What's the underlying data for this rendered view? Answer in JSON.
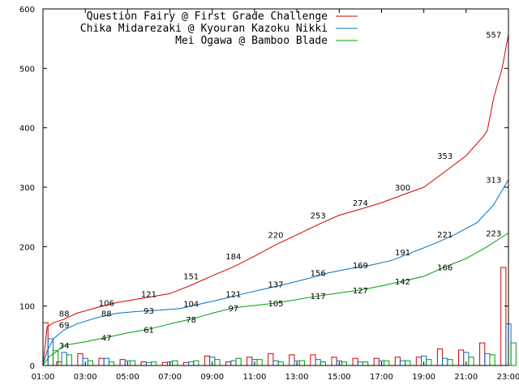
{
  "chart_data": {
    "type": "line",
    "xlim": [
      "01:00",
      "23:00"
    ],
    "ylim": [
      0,
      600
    ],
    "y_ticks": [
      "0",
      "100",
      "200",
      "300",
      "400",
      "500",
      "600"
    ],
    "x_ticks": [
      "01:00",
      "03:00",
      "05:00",
      "07:00",
      "09:00",
      "11:00",
      "13:00",
      "15:00",
      "17:00",
      "19:00",
      "21:00",
      "23:00"
    ],
    "grid": false,
    "legend_position": "top-right",
    "series": [
      {
        "name": "Question Fairy @ First Grade Challenge",
        "color": "#d40000",
        "cumulative": [
          {
            "x": 1.0,
            "y": 0
          },
          {
            "x": 1.2,
            "y": 65
          },
          {
            "x": 1.5,
            "y": 72
          },
          {
            "x": 2.0,
            "y": 78
          },
          {
            "x": 2.6,
            "y": 88
          },
          {
            "x": 3.5,
            "y": 97
          },
          {
            "x": 4.5,
            "y": 106
          },
          {
            "x": 5.5,
            "y": 112
          },
          {
            "x": 6.5,
            "y": 118
          },
          {
            "x": 7.0,
            "y": 121
          },
          {
            "x": 8.0,
            "y": 135
          },
          {
            "x": 9.0,
            "y": 151
          },
          {
            "x": 10.0,
            "y": 166
          },
          {
            "x": 11.0,
            "y": 184
          },
          {
            "x": 12.0,
            "y": 203
          },
          {
            "x": 13.0,
            "y": 220
          },
          {
            "x": 14.0,
            "y": 237
          },
          {
            "x": 15.0,
            "y": 253
          },
          {
            "x": 16.0,
            "y": 263
          },
          {
            "x": 17.0,
            "y": 274
          },
          {
            "x": 18.0,
            "y": 287
          },
          {
            "x": 19.0,
            "y": 300
          },
          {
            "x": 20.0,
            "y": 326
          },
          {
            "x": 21.0,
            "y": 353
          },
          {
            "x": 21.8,
            "y": 385
          },
          {
            "x": 22.0,
            "y": 395
          },
          {
            "x": 22.3,
            "y": 450
          },
          {
            "x": 22.7,
            "y": 500
          },
          {
            "x": 23.0,
            "y": 557
          }
        ],
        "labels": [
          {
            "x": 2.0,
            "y": 88,
            "text": "88"
          },
          {
            "x": 4.0,
            "y": 106,
            "text": "106"
          },
          {
            "x": 6.0,
            "y": 121,
            "text": "121"
          },
          {
            "x": 8.0,
            "y": 151,
            "text": "151"
          },
          {
            "x": 10.0,
            "y": 184,
            "text": "184"
          },
          {
            "x": 12.0,
            "y": 220,
            "text": "220"
          },
          {
            "x": 14.0,
            "y": 253,
            "text": "253"
          },
          {
            "x": 16.0,
            "y": 274,
            "text": "274"
          },
          {
            "x": 18.0,
            "y": 300,
            "text": "300"
          },
          {
            "x": 20.0,
            "y": 353,
            "text": "353"
          },
          {
            "x": 22.3,
            "y": 557,
            "text": "557"
          }
        ],
        "hourly": [
          72,
          6,
          20,
          12,
          10,
          6,
          5,
          5,
          16,
          6,
          14,
          20,
          18,
          18,
          14,
          12,
          12,
          14,
          14,
          28,
          26,
          38,
          165
        ]
      },
      {
        "name": "Chika Midarezaki @ Kyouran Kazoku Nikki",
        "color": "#0070c8",
        "cumulative": [
          {
            "x": 1.0,
            "y": 0
          },
          {
            "x": 1.2,
            "y": 25
          },
          {
            "x": 1.5,
            "y": 45
          },
          {
            "x": 2.0,
            "y": 60
          },
          {
            "x": 2.6,
            "y": 70
          },
          {
            "x": 3.5,
            "y": 80
          },
          {
            "x": 4.5,
            "y": 88
          },
          {
            "x": 5.5,
            "y": 91
          },
          {
            "x": 6.5,
            "y": 93
          },
          {
            "x": 7.5,
            "y": 96
          },
          {
            "x": 8.5,
            "y": 104
          },
          {
            "x": 9.5,
            "y": 112
          },
          {
            "x": 10.5,
            "y": 121
          },
          {
            "x": 11.5,
            "y": 129
          },
          {
            "x": 12.5,
            "y": 137
          },
          {
            "x": 13.5,
            "y": 146
          },
          {
            "x": 14.5,
            "y": 156
          },
          {
            "x": 15.5,
            "y": 163
          },
          {
            "x": 16.5,
            "y": 169
          },
          {
            "x": 17.5,
            "y": 177
          },
          {
            "x": 18.5,
            "y": 191
          },
          {
            "x": 19.5,
            "y": 205
          },
          {
            "x": 20.5,
            "y": 221
          },
          {
            "x": 21.5,
            "y": 240
          },
          {
            "x": 22.3,
            "y": 270
          },
          {
            "x": 23.0,
            "y": 313
          }
        ],
        "labels": [
          {
            "x": 2.0,
            "y": 69,
            "text": "69"
          },
          {
            "x": 4.0,
            "y": 88,
            "text": "88"
          },
          {
            "x": 6.0,
            "y": 93,
            "text": "93"
          },
          {
            "x": 8.0,
            "y": 104,
            "text": "104"
          },
          {
            "x": 10.0,
            "y": 121,
            "text": "121"
          },
          {
            "x": 12.0,
            "y": 137,
            "text": "137"
          },
          {
            "x": 14.0,
            "y": 156,
            "text": "156"
          },
          {
            "x": 16.0,
            "y": 169,
            "text": "169"
          },
          {
            "x": 18.0,
            "y": 191,
            "text": "191"
          },
          {
            "x": 20.0,
            "y": 221,
            "text": "221"
          },
          {
            "x": 22.3,
            "y": 313,
            "text": "313"
          }
        ],
        "hourly": [
          45,
          22,
          12,
          12,
          8,
          5,
          6,
          6,
          14,
          8,
          10,
          8,
          8,
          10,
          8,
          6,
          8,
          8,
          16,
          12,
          22,
          20,
          70
        ]
      },
      {
        "name": "Mei Ogawa @ Bamboo Blade",
        "color": "#00a000",
        "cumulative": [
          {
            "x": 1.0,
            "y": 0
          },
          {
            "x": 1.3,
            "y": 15
          },
          {
            "x": 1.7,
            "y": 25
          },
          {
            "x": 2.0,
            "y": 34
          },
          {
            "x": 3.0,
            "y": 40
          },
          {
            "x": 4.0,
            "y": 47
          },
          {
            "x": 5.0,
            "y": 55
          },
          {
            "x": 6.0,
            "y": 61
          },
          {
            "x": 7.0,
            "y": 70
          },
          {
            "x": 8.0,
            "y": 78
          },
          {
            "x": 9.0,
            "y": 88
          },
          {
            "x": 10.0,
            "y": 97
          },
          {
            "x": 11.0,
            "y": 101
          },
          {
            "x": 12.0,
            "y": 105
          },
          {
            "x": 13.0,
            "y": 111
          },
          {
            "x": 14.0,
            "y": 117
          },
          {
            "x": 15.0,
            "y": 122
          },
          {
            "x": 16.0,
            "y": 127
          },
          {
            "x": 17.0,
            "y": 134
          },
          {
            "x": 18.0,
            "y": 142
          },
          {
            "x": 19.0,
            "y": 150
          },
          {
            "x": 20.0,
            "y": 166
          },
          {
            "x": 21.0,
            "y": 180
          },
          {
            "x": 22.0,
            "y": 200
          },
          {
            "x": 23.0,
            "y": 223
          }
        ],
        "labels": [
          {
            "x": 2.0,
            "y": 34,
            "text": "34"
          },
          {
            "x": 4.0,
            "y": 47,
            "text": "47"
          },
          {
            "x": 6.0,
            "y": 61,
            "text": "61"
          },
          {
            "x": 8.0,
            "y": 78,
            "text": "78"
          },
          {
            "x": 10.0,
            "y": 97,
            "text": "97"
          },
          {
            "x": 12.0,
            "y": 105,
            "text": "105"
          },
          {
            "x": 14.0,
            "y": 117,
            "text": "117"
          },
          {
            "x": 16.0,
            "y": 127,
            "text": "127"
          },
          {
            "x": 18.0,
            "y": 142,
            "text": "142"
          },
          {
            "x": 20.0,
            "y": 166,
            "text": "166"
          },
          {
            "x": 22.3,
            "y": 223,
            "text": "223"
          }
        ],
        "hourly": [
          25,
          18,
          8,
          6,
          8,
          6,
          8,
          8,
          10,
          12,
          10,
          6,
          8,
          6,
          6,
          6,
          8,
          8,
          10,
          10,
          14,
          18,
          38
        ]
      }
    ]
  }
}
